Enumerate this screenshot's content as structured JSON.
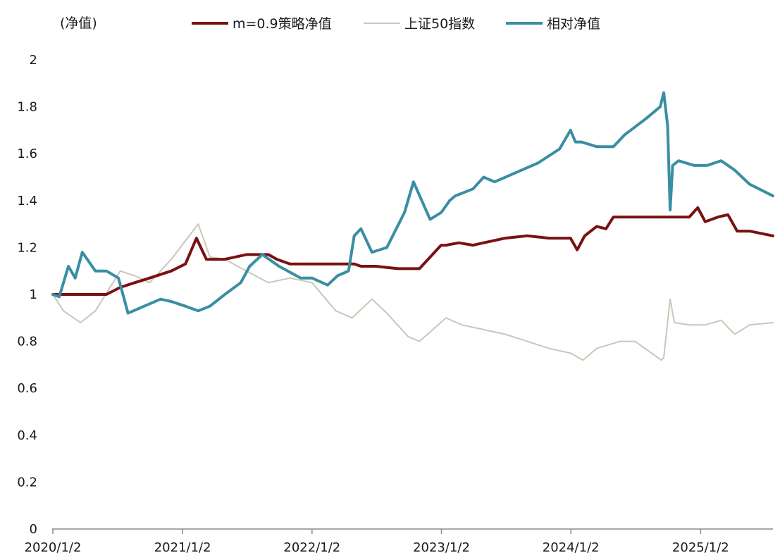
{
  "chart_data": {
    "type": "line",
    "ylabel": "(净值)",
    "ylim": [
      0,
      2
    ],
    "yticks": [
      "0",
      "0.2",
      "0.4",
      "0.6",
      "0.8",
      "1",
      "1.2",
      "1.4",
      "1.6",
      "1.8",
      "2"
    ],
    "xlim": [
      "2020-01-02",
      "2025-07-25"
    ],
    "xticks": [
      {
        "label": "2020/1/2",
        "date": "2020-01-02"
      },
      {
        "label": "2021/1/2",
        "date": "2021-01-02"
      },
      {
        "label": "2022/1/2",
        "date": "2022-01-02"
      },
      {
        "label": "2023/1/2",
        "date": "2023-01-02"
      },
      {
        "label": "2024/1/2",
        "date": "2024-01-02"
      },
      {
        "label": "2025/1/2",
        "date": "2025-01-02"
      }
    ],
    "legend_position": "top",
    "grid": false,
    "series": [
      {
        "name": "m=0.9策略净值",
        "color": "#7a1212",
        "x": [
          "2020-01-02",
          "2020-03-01",
          "2020-06-01",
          "2020-07-10",
          "2020-08-20",
          "2020-10-01",
          "2020-12-01",
          "2021-01-10",
          "2021-02-10",
          "2021-03-10",
          "2021-05-01",
          "2021-07-01",
          "2021-09-01",
          "2021-09-25",
          "2021-11-01",
          "2022-03-01",
          "2022-05-01",
          "2022-05-20",
          "2022-07-01",
          "2022-09-01",
          "2022-11-01",
          "2023-01-01",
          "2023-01-15",
          "2023-02-20",
          "2023-04-01",
          "2023-05-01",
          "2023-07-01",
          "2023-09-01",
          "2023-11-01",
          "2024-01-01",
          "2024-01-20",
          "2024-02-10",
          "2024-03-15",
          "2024-04-10",
          "2024-05-01",
          "2024-07-01",
          "2024-09-01",
          "2024-10-15",
          "2024-12-01",
          "2024-12-25",
          "2025-01-15",
          "2025-02-20",
          "2025-03-20",
          "2025-04-15",
          "2025-05-20",
          "2025-07-25"
        ],
        "y": [
          1.0,
          1.0,
          1.0,
          1.03,
          1.05,
          1.07,
          1.1,
          1.13,
          1.24,
          1.15,
          1.15,
          1.17,
          1.17,
          1.15,
          1.13,
          1.13,
          1.13,
          1.12,
          1.12,
          1.11,
          1.11,
          1.21,
          1.21,
          1.22,
          1.21,
          1.22,
          1.24,
          1.25,
          1.24,
          1.24,
          1.19,
          1.25,
          1.29,
          1.28,
          1.33,
          1.33,
          1.33,
          1.33,
          1.33,
          1.37,
          1.31,
          1.33,
          1.34,
          1.27,
          1.27,
          1.25
        ]
      },
      {
        "name": "上证50指数",
        "color": "#c9c7b8",
        "x": [
          "2020-01-02",
          "2020-02-01",
          "2020-03-20",
          "2020-05-01",
          "2020-07-10",
          "2020-08-20",
          "2020-10-01",
          "2020-12-01",
          "2021-02-15",
          "2021-03-20",
          "2021-05-01",
          "2021-07-01",
          "2021-09-01",
          "2021-11-01",
          "2022-01-02",
          "2022-03-10",
          "2022-04-25",
          "2022-06-20",
          "2022-08-01",
          "2022-09-30",
          "2022-11-01",
          "2023-01-15",
          "2023-03-01",
          "2023-05-01",
          "2023-07-01",
          "2023-09-01",
          "2023-11-01",
          "2024-01-01",
          "2024-02-05",
          "2024-03-15",
          "2024-05-20",
          "2024-07-01",
          "2024-09-13",
          "2024-09-20",
          "2024-10-08",
          "2024-10-20",
          "2024-12-01",
          "2025-01-15",
          "2025-03-01",
          "2025-04-08",
          "2025-05-20",
          "2025-07-25"
        ],
        "y": [
          1.0,
          0.93,
          0.88,
          0.93,
          1.1,
          1.08,
          1.05,
          1.15,
          1.3,
          1.16,
          1.15,
          1.1,
          1.05,
          1.07,
          1.05,
          0.93,
          0.9,
          0.98,
          0.92,
          0.82,
          0.8,
          0.9,
          0.87,
          0.85,
          0.83,
          0.8,
          0.77,
          0.75,
          0.72,
          0.77,
          0.8,
          0.8,
          0.72,
          0.73,
          0.98,
          0.88,
          0.87,
          0.87,
          0.89,
          0.83,
          0.87,
          0.88
        ]
      },
      {
        "name": "相对净值",
        "color": "#3a8ea3",
        "x": [
          "2020-01-02",
          "2020-01-20",
          "2020-02-15",
          "2020-03-05",
          "2020-03-25",
          "2020-05-01",
          "2020-06-01",
          "2020-07-05",
          "2020-08-01",
          "2020-10-01",
          "2020-11-01",
          "2020-12-01",
          "2021-01-10",
          "2021-02-15",
          "2021-03-20",
          "2021-05-01",
          "2021-06-15",
          "2021-07-10",
          "2021-08-15",
          "2021-10-01",
          "2021-12-01",
          "2022-01-02",
          "2022-02-15",
          "2022-03-15",
          "2022-04-15",
          "2022-05-01",
          "2022-05-20",
          "2022-06-20",
          "2022-08-01",
          "2022-09-20",
          "2022-10-15",
          "2022-12-01",
          "2023-01-02",
          "2023-01-25",
          "2023-02-10",
          "2023-04-01",
          "2023-05-01",
          "2023-06-01",
          "2023-08-01",
          "2023-10-01",
          "2023-12-01",
          "2024-01-01",
          "2024-01-15",
          "2024-02-01",
          "2024-03-15",
          "2024-05-01",
          "2024-06-01",
          "2024-08-01",
          "2024-09-10",
          "2024-09-20",
          "2024-10-01",
          "2024-10-08",
          "2024-10-15",
          "2024-11-01",
          "2024-12-15",
          "2025-01-20",
          "2025-03-01",
          "2025-04-08",
          "2025-05-20",
          "2025-07-25"
        ],
        "y": [
          1.0,
          0.99,
          1.12,
          1.07,
          1.18,
          1.1,
          1.1,
          1.07,
          0.92,
          0.96,
          0.98,
          0.97,
          0.95,
          0.93,
          0.95,
          1.0,
          1.05,
          1.12,
          1.17,
          1.12,
          1.07,
          1.07,
          1.04,
          1.08,
          1.1,
          1.25,
          1.28,
          1.18,
          1.2,
          1.35,
          1.48,
          1.32,
          1.35,
          1.4,
          1.42,
          1.45,
          1.5,
          1.48,
          1.52,
          1.56,
          1.62,
          1.7,
          1.65,
          1.65,
          1.63,
          1.63,
          1.68,
          1.75,
          1.8,
          1.86,
          1.72,
          1.36,
          1.55,
          1.57,
          1.55,
          1.55,
          1.57,
          1.53,
          1.47,
          1.42
        ]
      }
    ]
  }
}
